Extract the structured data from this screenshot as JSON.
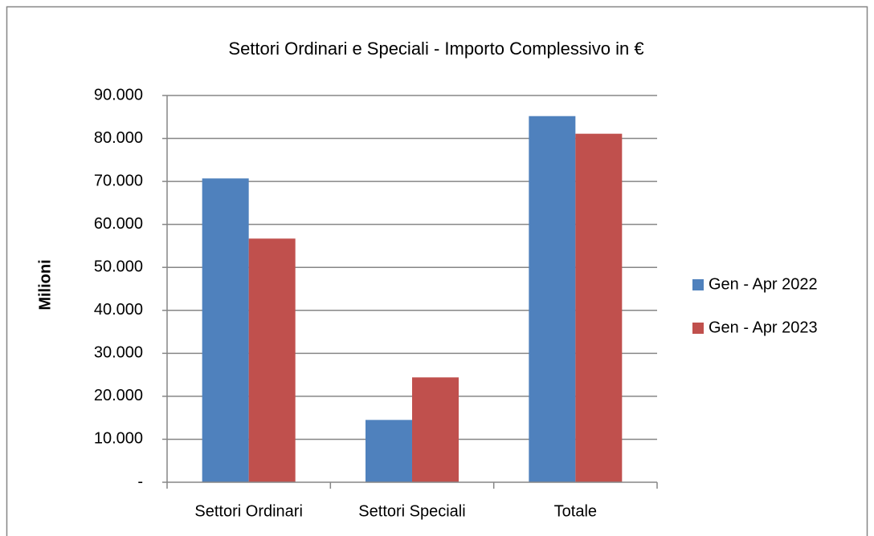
{
  "chart_data": {
    "type": "bar",
    "title": "Settori Ordinari e Speciali - Importo Complessivo in €",
    "y_label": "Milioni",
    "categories": [
      "Settori Ordinari",
      "Settori Speciali",
      "Totale"
    ],
    "series": [
      {
        "name": "Gen - Apr 2022",
        "color": "#4f81bd",
        "values": [
          70700,
          14500,
          85200
        ]
      },
      {
        "name": "Gen - Apr 2023",
        "color": "#c0504d",
        "values": [
          56700,
          24400,
          81100
        ]
      }
    ],
    "ylim": [
      0,
      90000
    ],
    "yticks": [
      {
        "value": 0,
        "label": "-"
      },
      {
        "value": 10000,
        "label": "10.000"
      },
      {
        "value": 20000,
        "label": "20.000"
      },
      {
        "value": 30000,
        "label": "30.000"
      },
      {
        "value": 40000,
        "label": "40.000"
      },
      {
        "value": 50000,
        "label": "50.000"
      },
      {
        "value": 60000,
        "label": "60.000"
      },
      {
        "value": 70000,
        "label": "70.000"
      },
      {
        "value": 80000,
        "label": "80.000"
      },
      {
        "value": 90000,
        "label": "90.000"
      }
    ],
    "grid": true,
    "legend": "right"
  }
}
